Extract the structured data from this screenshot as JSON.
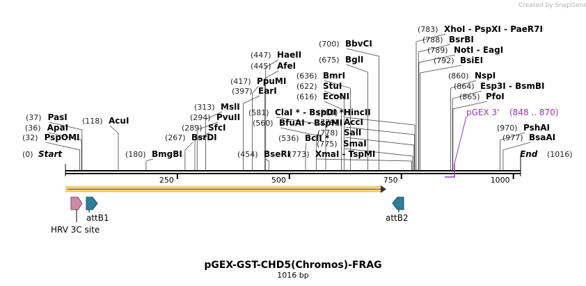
{
  "watermark": "Created by SnapGene",
  "map": {
    "title": "pGEX-GST-CHD5(Chromos)-FRAG",
    "length_label": "1016 bp",
    "length": 1016,
    "start_label": "Start",
    "start_pos": "(0)",
    "end_label": "End",
    "end_pos": "(1016)",
    "ticks": [
      {
        "pos": 250,
        "label": "250"
      },
      {
        "pos": 500,
        "label": "500"
      },
      {
        "pos": 750,
        "label": "750"
      },
      {
        "pos": 1000,
        "label": "1000"
      }
    ]
  },
  "sites": [
    {
      "pos": "(32)",
      "name": "PspOMI",
      "bp": 32
    },
    {
      "pos": "(36)",
      "name": "ApaI",
      "bp": 36
    },
    {
      "pos": "(37)",
      "name": "PasI",
      "bp": 37
    },
    {
      "pos": "(118)",
      "name": "AcuI",
      "bp": 118
    },
    {
      "pos": "(180)",
      "name": "BmgBI",
      "bp": 180
    },
    {
      "pos": "(267)",
      "name": "BsrDI",
      "bp": 267
    },
    {
      "pos": "(289)",
      "name": "SfcI",
      "bp": 289
    },
    {
      "pos": "(294)",
      "name": "PvuII",
      "bp": 294
    },
    {
      "pos": "(313)",
      "name": "MslI",
      "bp": 313
    },
    {
      "pos": "(397)",
      "name": "EarI",
      "bp": 397
    },
    {
      "pos": "(417)",
      "name": "PpuMI",
      "bp": 417
    },
    {
      "pos": "(445)",
      "name": "AfeI",
      "bp": 445
    },
    {
      "pos": "(447)",
      "name": "HaeII",
      "bp": 447
    },
    {
      "pos": "(454)",
      "name": "BseRI",
      "bp": 454
    },
    {
      "pos": "(560)",
      "name": "BfuAI - BspMI",
      "bp": 560
    },
    {
      "pos": "(581)",
      "name": "ClaI * - BspDI *",
      "bp": 581
    },
    {
      "pos": "(536)",
      "name": "BclI *",
      "bp": 536
    },
    {
      "pos": "(616)",
      "name": "EcoNI",
      "bp": 616
    },
    {
      "pos": "(622)",
      "name": "StuI",
      "bp": 622
    },
    {
      "pos": "(636)",
      "name": "BmrI",
      "bp": 636
    },
    {
      "pos": "(675)",
      "name": "BglI",
      "bp": 675
    },
    {
      "pos": "(700)",
      "name": "BbvCI",
      "bp": 700
    },
    {
      "pos": "(773)",
      "name": "XmaI - TspMI",
      "bp": 773
    },
    {
      "pos": "(775)",
      "name": "SmaI",
      "bp": 775
    },
    {
      "pos": "(778)",
      "name": "SalI",
      "bp": 778
    },
    {
      "pos": "(779)",
      "name": "AccI",
      "bp": 779
    },
    {
      "pos": "(780)",
      "name": "HincII",
      "bp": 780
    },
    {
      "pos": "(783)",
      "name": "XhoI - PspXI - PaeR7I",
      "bp": 783
    },
    {
      "pos": "(788)",
      "name": "BsrBI",
      "bp": 788
    },
    {
      "pos": "(789)",
      "name": "NotI - EagI",
      "bp": 789
    },
    {
      "pos": "(792)",
      "name": "BsiEI",
      "bp": 792
    },
    {
      "pos": "(860)",
      "name": "NspI",
      "bp": 860
    },
    {
      "pos": "(864)",
      "name": "Esp3I - BsmBI",
      "bp": 864
    },
    {
      "pos": "(865)",
      "name": "PfoI",
      "bp": 865
    },
    {
      "pos": "(970)",
      "name": "PshAI",
      "bp": 970
    },
    {
      "pos": "(977)",
      "name": "BsaAI",
      "bp": 977
    }
  ],
  "primer": {
    "name": "pGEX 3'",
    "range": "(848 .. 870)",
    "color": "#9933cc"
  },
  "features": [
    {
      "name": "HRV 3C site",
      "color": "#c98aa6"
    },
    {
      "name": "attB1",
      "color": "#2e7d9a"
    },
    {
      "name": "attB2",
      "color": "#2e7d9a"
    }
  ],
  "orf_color": "#f5a623"
}
